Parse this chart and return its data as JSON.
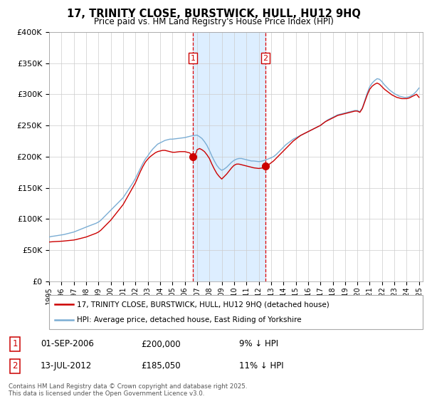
{
  "title": "17, TRINITY CLOSE, BURSTWICK, HULL, HU12 9HQ",
  "subtitle": "Price paid vs. HM Land Registry's House Price Index (HPI)",
  "ylim": [
    0,
    400000
  ],
  "yticks": [
    0,
    50000,
    100000,
    150000,
    200000,
    250000,
    300000,
    350000,
    400000
  ],
  "ytick_labels": [
    "£0",
    "£50K",
    "£100K",
    "£150K",
    "£200K",
    "£250K",
    "£300K",
    "£350K",
    "£400K"
  ],
  "xlim_left": 1995,
  "xlim_right": 2025.3,
  "sale1_date": 2006.67,
  "sale1_price": 200000,
  "sale2_date": 2012.54,
  "sale2_price": 185050,
  "line_color_price": "#cc0000",
  "line_color_hpi": "#7aadd4",
  "highlight_color": "#ddeeff",
  "grid_color": "#cccccc",
  "background_color": "#ffffff",
  "legend_label_price": "17, TRINITY CLOSE, BURSTWICK, HULL, HU12 9HQ (detached house)",
  "legend_label_hpi": "HPI: Average price, detached house, East Riding of Yorkshire",
  "annot1_date": "01-SEP-2006",
  "annot1_price": "£200,000",
  "annot1_pct": "9% ↓ HPI",
  "annot2_date": "13-JUL-2012",
  "annot2_price": "£185,050",
  "annot2_pct": "11% ↓ HPI",
  "footer": "Contains HM Land Registry data © Crown copyright and database right 2025.\nThis data is licensed under the Open Government Licence v3.0.",
  "hpi_years": [
    1995.0,
    1995.1,
    1995.2,
    1995.3,
    1995.4,
    1995.5,
    1995.6,
    1995.7,
    1995.8,
    1995.9,
    1996.0,
    1996.1,
    1996.2,
    1996.3,
    1996.4,
    1996.5,
    1996.6,
    1996.7,
    1996.8,
    1996.9,
    1997.0,
    1997.1,
    1997.2,
    1997.3,
    1997.4,
    1997.5,
    1997.6,
    1997.7,
    1997.8,
    1997.9,
    1998.0,
    1998.2,
    1998.4,
    1998.6,
    1998.8,
    1999.0,
    1999.2,
    1999.4,
    1999.6,
    1999.8,
    2000.0,
    2000.2,
    2000.4,
    2000.6,
    2000.8,
    2001.0,
    2001.2,
    2001.4,
    2001.6,
    2001.8,
    2002.0,
    2002.2,
    2002.4,
    2002.6,
    2002.8,
    2003.0,
    2003.2,
    2003.4,
    2003.6,
    2003.8,
    2004.0,
    2004.2,
    2004.4,
    2004.6,
    2004.8,
    2005.0,
    2005.2,
    2005.4,
    2005.6,
    2005.8,
    2006.0,
    2006.2,
    2006.4,
    2006.6,
    2006.8,
    2007.0,
    2007.2,
    2007.4,
    2007.6,
    2007.8,
    2008.0,
    2008.2,
    2008.4,
    2008.6,
    2008.8,
    2009.0,
    2009.2,
    2009.4,
    2009.6,
    2009.8,
    2010.0,
    2010.2,
    2010.4,
    2010.6,
    2010.8,
    2011.0,
    2011.2,
    2011.4,
    2011.6,
    2011.8,
    2012.0,
    2012.2,
    2012.4,
    2012.6,
    2012.8,
    2013.0,
    2013.2,
    2013.4,
    2013.6,
    2013.8,
    2014.0,
    2014.2,
    2014.4,
    2014.6,
    2014.8,
    2015.0,
    2015.2,
    2015.4,
    2015.6,
    2015.8,
    2016.0,
    2016.2,
    2016.4,
    2016.6,
    2016.8,
    2017.0,
    2017.2,
    2017.4,
    2017.6,
    2017.8,
    2018.0,
    2018.2,
    2018.4,
    2018.6,
    2018.8,
    2019.0,
    2019.2,
    2019.4,
    2019.6,
    2019.8,
    2020.0,
    2020.2,
    2020.4,
    2020.6,
    2020.8,
    2021.0,
    2021.2,
    2021.4,
    2021.6,
    2021.8,
    2022.0,
    2022.2,
    2022.4,
    2022.6,
    2022.8,
    2023.0,
    2023.2,
    2023.4,
    2023.6,
    2023.8,
    2024.0,
    2024.2,
    2024.4,
    2024.6,
    2024.8,
    2025.0
  ],
  "hpi_values": [
    71000,
    71500,
    72000,
    72200,
    72500,
    72800,
    73000,
    73300,
    73600,
    73900,
    74200,
    74600,
    75000,
    75500,
    76000,
    76500,
    77000,
    77500,
    78000,
    78500,
    79000,
    79800,
    80600,
    81400,
    82200,
    83000,
    83800,
    84600,
    85400,
    86200,
    87000,
    88500,
    90000,
    91500,
    93000,
    95000,
    98000,
    102000,
    106000,
    110000,
    114000,
    118000,
    122000,
    126000,
    130000,
    134000,
    140000,
    146000,
    152000,
    158000,
    165000,
    173000,
    181000,
    189000,
    196000,
    201000,
    207000,
    212000,
    216000,
    220000,
    222000,
    224000,
    226000,
    227000,
    228000,
    228000,
    228500,
    229000,
    229500,
    230000,
    230500,
    231500,
    232500,
    233500,
    234000,
    234500,
    232000,
    229000,
    224000,
    218000,
    210000,
    201000,
    193000,
    186000,
    181000,
    178000,
    180000,
    183000,
    187000,
    191000,
    194000,
    196000,
    197000,
    197000,
    196000,
    195000,
    194000,
    193000,
    193000,
    192500,
    192000,
    192500,
    193500,
    195000,
    196500,
    198000,
    200000,
    203000,
    207000,
    211000,
    215000,
    219000,
    222000,
    225000,
    228000,
    230000,
    232000,
    234000,
    236000,
    238000,
    240000,
    242000,
    244000,
    246000,
    248000,
    250000,
    253000,
    256000,
    259000,
    261000,
    263000,
    265000,
    267000,
    268000,
    269000,
    270000,
    271000,
    272000,
    273000,
    274000,
    274000,
    272000,
    278000,
    290000,
    302000,
    312000,
    318000,
    322000,
    325000,
    324000,
    320000,
    315000,
    311000,
    307000,
    304000,
    301000,
    299000,
    297000,
    296000,
    295000,
    295000,
    296000,
    298000,
    301000,
    305000,
    310000
  ],
  "price_years": [
    1995.0,
    1995.1,
    1995.2,
    1995.3,
    1995.4,
    1995.5,
    1995.6,
    1995.7,
    1995.8,
    1995.9,
    1996.0,
    1996.1,
    1996.2,
    1996.3,
    1996.4,
    1996.5,
    1996.6,
    1996.7,
    1996.8,
    1996.9,
    1997.0,
    1997.2,
    1997.4,
    1997.6,
    1997.8,
    1998.0,
    1998.2,
    1998.4,
    1998.6,
    1998.8,
    1999.0,
    1999.2,
    1999.4,
    1999.6,
    1999.8,
    2000.0,
    2000.2,
    2000.4,
    2000.6,
    2000.8,
    2001.0,
    2001.2,
    2001.4,
    2001.6,
    2001.8,
    2002.0,
    2002.2,
    2002.4,
    2002.6,
    2002.8,
    2003.0,
    2003.2,
    2003.4,
    2003.6,
    2003.8,
    2004.0,
    2004.2,
    2004.4,
    2004.6,
    2004.8,
    2005.0,
    2005.2,
    2005.4,
    2005.6,
    2005.8,
    2006.0,
    2006.2,
    2006.4,
    2006.67,
    2006.9,
    2007.0,
    2007.2,
    2007.4,
    2007.6,
    2007.8,
    2008.0,
    2008.2,
    2008.4,
    2008.6,
    2008.8,
    2009.0,
    2009.2,
    2009.4,
    2009.6,
    2009.8,
    2010.0,
    2010.2,
    2010.4,
    2010.6,
    2010.8,
    2011.0,
    2011.2,
    2011.4,
    2011.6,
    2011.8,
    2012.0,
    2012.2,
    2012.4,
    2012.54,
    2012.8,
    2013.0,
    2013.2,
    2013.4,
    2013.6,
    2013.8,
    2014.0,
    2014.2,
    2014.4,
    2014.6,
    2014.8,
    2015.0,
    2015.2,
    2015.4,
    2015.6,
    2015.8,
    2016.0,
    2016.2,
    2016.4,
    2016.6,
    2016.8,
    2017.0,
    2017.2,
    2017.4,
    2017.6,
    2017.8,
    2018.0,
    2018.2,
    2018.4,
    2018.6,
    2018.8,
    2019.0,
    2019.2,
    2019.4,
    2019.6,
    2019.8,
    2020.0,
    2020.2,
    2020.4,
    2020.6,
    2020.8,
    2021.0,
    2021.2,
    2021.4,
    2021.6,
    2021.8,
    2022.0,
    2022.2,
    2022.4,
    2022.6,
    2022.8,
    2023.0,
    2023.2,
    2023.4,
    2023.6,
    2023.8,
    2024.0,
    2024.2,
    2024.4,
    2024.6,
    2024.8,
    2025.0
  ],
  "price_values": [
    63000,
    63200,
    63400,
    63500,
    63600,
    63700,
    63800,
    63900,
    64000,
    64100,
    64200,
    64400,
    64600,
    64800,
    65000,
    65200,
    65400,
    65600,
    65800,
    66000,
    66200,
    67000,
    68000,
    69000,
    70000,
    71000,
    72500,
    74000,
    75500,
    77000,
    79000,
    82000,
    86000,
    90000,
    94000,
    98000,
    103000,
    108000,
    113000,
    118000,
    123000,
    130000,
    137000,
    144000,
    151000,
    158000,
    167000,
    176000,
    184000,
    191000,
    196000,
    200000,
    203000,
    206000,
    208000,
    209000,
    210000,
    210000,
    209000,
    208000,
    207000,
    207000,
    207500,
    208000,
    208000,
    208000,
    207000,
    206000,
    200000,
    205000,
    211000,
    213000,
    211000,
    208000,
    203000,
    197000,
    188000,
    180000,
    173000,
    168000,
    164000,
    168000,
    172000,
    177000,
    182000,
    186000,
    188000,
    188000,
    187000,
    186000,
    185000,
    184000,
    183000,
    182000,
    181500,
    181000,
    181500,
    182000,
    185050,
    187000,
    190000,
    193000,
    197000,
    201000,
    205000,
    209000,
    213000,
    217000,
    221000,
    225000,
    228000,
    231000,
    234000,
    236000,
    238000,
    240000,
    242000,
    244000,
    246000,
    248000,
    250000,
    253000,
    256000,
    258000,
    260000,
    262000,
    264000,
    266000,
    267000,
    268000,
    269000,
    270000,
    271000,
    272000,
    273000,
    273000,
    271000,
    277000,
    288000,
    299000,
    308000,
    313000,
    316000,
    318000,
    316000,
    312000,
    308000,
    305000,
    302000,
    299000,
    297000,
    295000,
    294000,
    293000,
    293000,
    293000,
    294000,
    296000,
    298000,
    300000,
    295000
  ]
}
